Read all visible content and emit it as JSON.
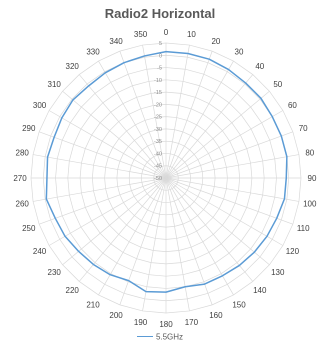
{
  "chart_data": {
    "type": "line",
    "subtype": "radar",
    "title": "Radio2 Horizontal",
    "angle_unit": "degrees",
    "angle_labels": [
      "0",
      "10",
      "20",
      "30",
      "40",
      "50",
      "60",
      "70",
      "80",
      "90",
      "100",
      "110",
      "120",
      "130",
      "140",
      "150",
      "160",
      "170",
      "180",
      "190",
      "200",
      "210",
      "220",
      "230",
      "240",
      "250",
      "260",
      "270",
      "280",
      "290",
      "300",
      "310",
      "320",
      "330",
      "340",
      "350"
    ],
    "radial_range": [
      -50,
      5
    ],
    "radial_ticks": [
      "5",
      "0",
      "-5",
      "-10",
      "-15",
      "-20",
      "-25",
      "-30",
      "-35",
      "-40",
      "-45",
      "-50"
    ],
    "grid": true,
    "legend_position": "bottom",
    "series": [
      {
        "name": "5.5GHz",
        "color": "#5b9bd5",
        "values": [
          1.5,
          1.5,
          1.5,
          1.0,
          0.5,
          0.5,
          0.0,
          0.0,
          0.0,
          -1.0,
          -1.0,
          -2.0,
          -2.5,
          -3.0,
          -3.5,
          -4.0,
          -4.0,
          -5.0,
          -3.5,
          -3.0,
          -5.5,
          -4.5,
          -4.0,
          -3.5,
          -2.5,
          -2.0,
          -0.5,
          -1.5,
          -1.0,
          -1.5,
          -1.0,
          -0.5,
          -1.0,
          -0.5,
          0.0,
          0.5
        ]
      }
    ]
  }
}
